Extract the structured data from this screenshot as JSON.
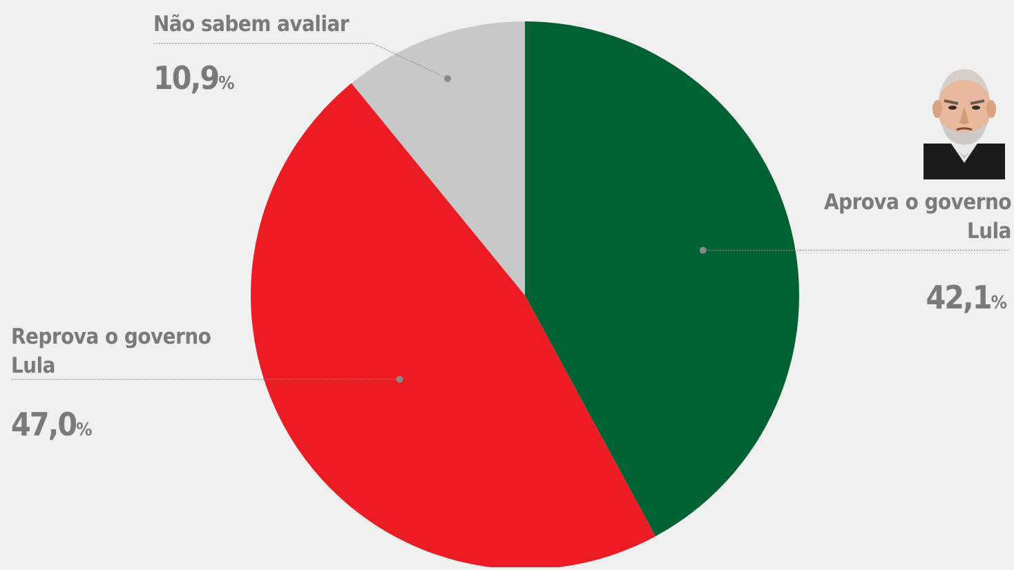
{
  "chart_data": {
    "type": "pie",
    "slices": [
      {
        "label": "Aprova o governo Lula",
        "value": 42.1,
        "display": "42,1",
        "color": "#006233"
      },
      {
        "label": "Reprova o governo Lula",
        "value": 47.0,
        "display": "47,0",
        "color": "#ec1c24"
      },
      {
        "label": "Não sabem avaliar",
        "value": 10.9,
        "display": "10,9",
        "color": "#c8c8c8"
      }
    ],
    "unit": "%",
    "start_angle": "12 o'clock",
    "direction": "clockwise"
  },
  "portrait": {
    "icon": "lula-caricature-icon"
  }
}
